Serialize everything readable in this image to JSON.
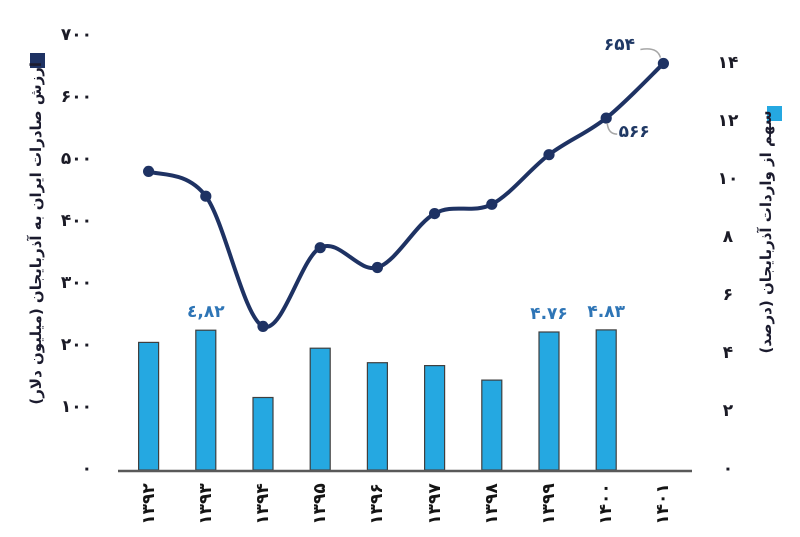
{
  "chart_data": {
    "type": "combo-bar-line",
    "title": "",
    "rtl": true,
    "categories": [
      "۱۳۹۲",
      "۱۳۹۳",
      "۱۳۹۴",
      "۱۳۹۵",
      "۱۳۹۶",
      "۱۳۹۷",
      "۱۳۹۸",
      "۱۳۹۹",
      "۱۴۰۰",
      "۱۴۰۱"
    ],
    "series": [
      {
        "name": "ارزش صادرات ایران به آذربایجان (میلیون دلار)",
        "type": "line",
        "axis": "left",
        "color": "#1E3263",
        "marker": "circle",
        "values": [
          480,
          440,
          230,
          357,
          325,
          412,
          427,
          507,
          566,
          654
        ],
        "data_labels": [
          {
            "index": 8,
            "text": "566",
            "dx": 28,
            "dy": 16
          },
          {
            "index": 9,
            "text": "654",
            "dx": -44,
            "dy": -17
          }
        ]
      },
      {
        "name": "سهم از واردات آذربایجان (درصد)",
        "type": "bar",
        "axis": "right",
        "color": "#25A8E1",
        "border_color": "#3f3f3f",
        "values": [
          4.4,
          4.82,
          2.5,
          4.2,
          3.7,
          3.6,
          3.1,
          4.76,
          4.83,
          null
        ],
        "data_labels": [
          {
            "index": 1,
            "text": "٤,٨٢"
          },
          {
            "index": 7,
            "text": "۴.۷۶"
          },
          {
            "index": 8,
            "text": "۴.۸۳"
          }
        ]
      }
    ],
    "left_axis": {
      "tick_labels": [
        "۷۰۰",
        "۶۰۰",
        "۵۰۰",
        "۴۰۰",
        "۳۰۰",
        "۲۰۰",
        "۱۰۰",
        "۰"
      ],
      "tick_values": [
        700,
        600,
        500,
        400,
        300,
        200,
        100,
        0
      ],
      "range": [
        0,
        700
      ]
    },
    "right_axis": {
      "tick_labels": [
        "۱۴",
        "۱۲",
        "۱۰",
        "۸",
        "۶",
        "۴",
        "۲",
        "۰"
      ],
      "tick_values": [
        14,
        12,
        10,
        8,
        6,
        4,
        2,
        0
      ],
      "range": [
        0,
        14
      ]
    },
    "legend": [
      {
        "label": "ارزش صادرات ایران به آذربایجان (میلیون دلار)",
        "color": "#1E3263",
        "position": "left"
      },
      {
        "label": "سهم از واردات آذربایجان (درصد)",
        "color": "#25A8E1",
        "position": "right"
      }
    ],
    "grid": false,
    "axis_line_color": "#595959",
    "leader_line_color": "#a6a6a6"
  }
}
